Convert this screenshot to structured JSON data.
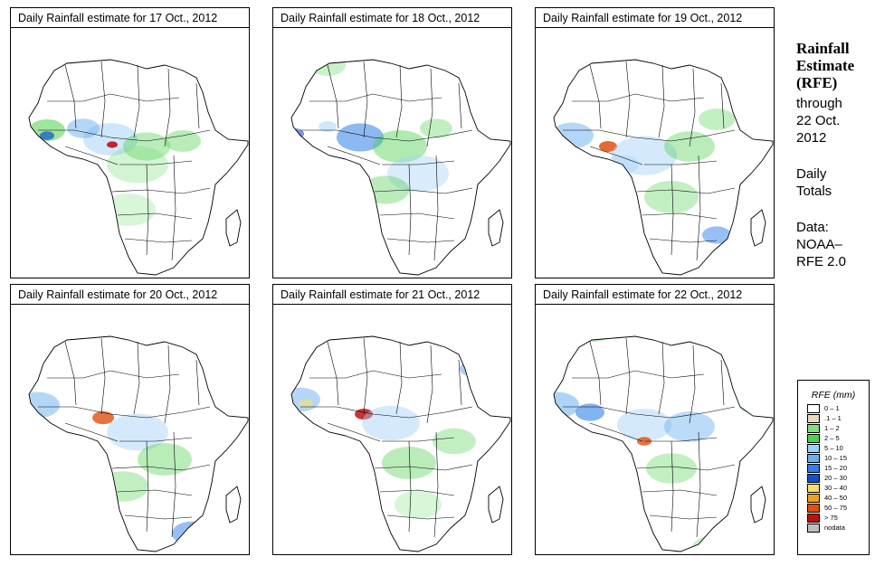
{
  "panels": [
    {
      "title": "Daily Rainfall estimate for  17 Oct., 2012"
    },
    {
      "title": "Daily Rainfall estimate for  18 Oct., 2012"
    },
    {
      "title": "Daily Rainfall estimate for  19 Oct., 2012"
    },
    {
      "title": "Daily Rainfall estimate for  20 Oct., 2012"
    },
    {
      "title": "Daily Rainfall estimate for  21 Oct., 2012"
    },
    {
      "title": "Daily Rainfall estimate for  22 Oct., 2012"
    }
  ],
  "sidebar": {
    "title_line1": "Rainfall",
    "title_line2": "Estimate",
    "title_line3": "(RFE)",
    "through": "through",
    "date_line1": "22 Oct.",
    "date_line2": "2012",
    "daily_line1": "Daily",
    "daily_line2": "Totals",
    "data_line1": "Data:",
    "data_line2": "NOAA–",
    "data_line3": "RFE 2.0"
  },
  "legend": {
    "title": "RFE (mm)",
    "items": [
      {
        "label": "0 – 1",
        "color": "#ffffff"
      },
      {
        "label": ".1 – 1",
        "color": "#e8d9c0"
      },
      {
        "label": "1 – 2",
        "color": "#7fe07f"
      },
      {
        "label": "2 – 5",
        "color": "#4fd04f"
      },
      {
        "label": "5 – 10",
        "color": "#9fd0f8"
      },
      {
        "label": "10 – 15",
        "color": "#6ab0f0"
      },
      {
        "label": "15 – 20",
        "color": "#3080e8"
      },
      {
        "label": "20 – 30",
        "color": "#1050d0"
      },
      {
        "label": "30 – 40",
        "color": "#f8e070"
      },
      {
        "label": "40 – 50",
        "color": "#f0a020"
      },
      {
        "label": "50 – 75",
        "color": "#e05010"
      },
      {
        "label": "> 75",
        "color": "#c01010"
      },
      {
        "label": "nodata",
        "color": "#bfbfbf"
      }
    ]
  }
}
